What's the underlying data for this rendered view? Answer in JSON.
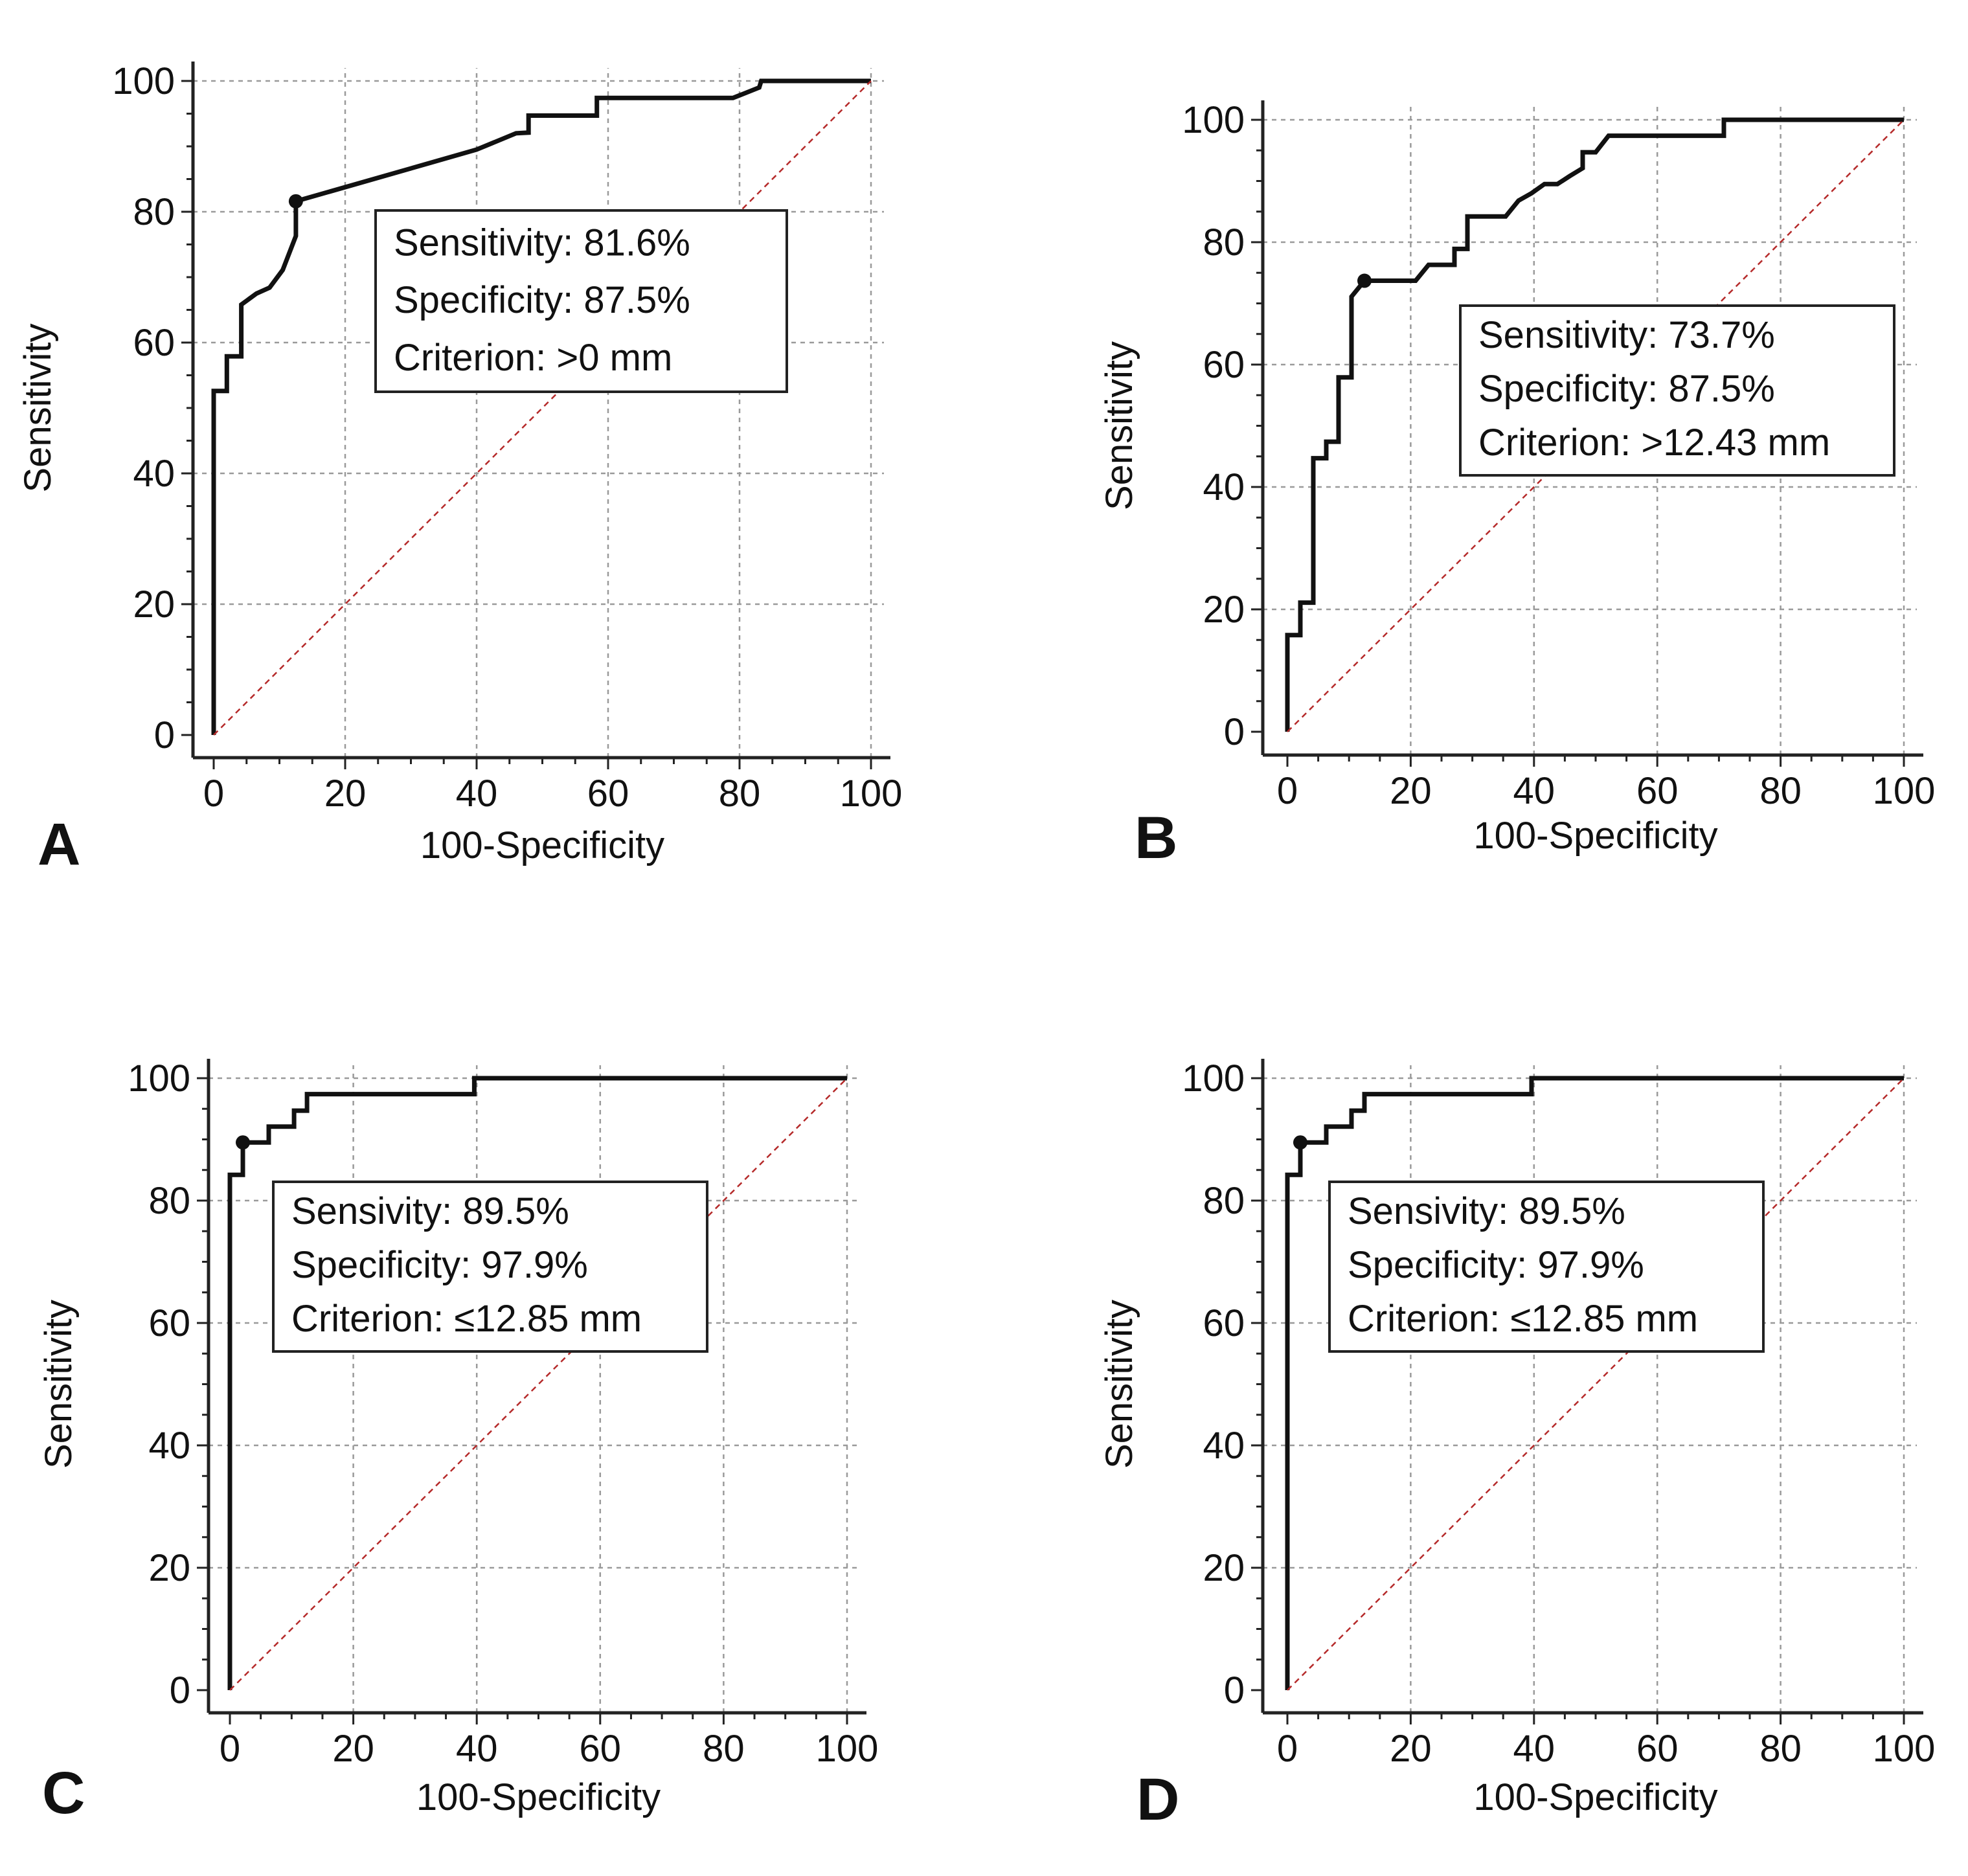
{
  "panels": [
    {
      "label": "A",
      "chart_data": {
        "type": "line",
        "title": "",
        "xlabel": "100-Specificity",
        "ylabel": "Sensitivity",
        "xlim": [
          0,
          100
        ],
        "ylim": [
          0,
          100
        ],
        "xticks": [
          0,
          20,
          40,
          60,
          80,
          100
        ],
        "yticks": [
          0,
          20,
          40,
          60,
          80,
          100
        ],
        "xtick_labels": [
          "0",
          "20",
          "40",
          "60",
          "80",
          "100"
        ],
        "ytick_labels": [
          "0",
          "20",
          "40",
          "60",
          "80",
          "100"
        ],
        "grid": true,
        "series": [
          {
            "name": "ROC curve",
            "x": [
              0,
              0,
              2,
              2,
              4.2,
              4.2,
              6.5,
              8.5,
              10.5,
              12.5,
              12.5,
              40,
              46,
              47.9,
              47.9,
              58.3,
              58.3,
              79,
              83,
              83.3,
              100
            ],
            "y": [
              0,
              52.6,
              52.6,
              57.9,
              57.9,
              65.8,
              67.5,
              68.4,
              71.1,
              76.3,
              81.6,
              89.5,
              92,
              92.1,
              94.7,
              94.7,
              97.4,
              97.4,
              99,
              100,
              100
            ]
          },
          {
            "name": "Reference line",
            "x": [
              0,
              100
            ],
            "y": [
              0,
              100
            ]
          }
        ],
        "cutoff_point": {
          "x": 12.5,
          "y": 81.6
        },
        "annotation": [
          "Sensitivity: 81.6%",
          "Specificity: 87.5%",
          "Criterion: >0 mm"
        ]
      }
    },
    {
      "label": "B",
      "chart_data": {
        "type": "line",
        "title": "",
        "xlabel": "100-Specificity",
        "ylabel": "Sensitivity",
        "xlim": [
          0,
          100
        ],
        "ylim": [
          0,
          100
        ],
        "xticks": [
          0,
          20,
          40,
          60,
          80,
          100
        ],
        "yticks": [
          0,
          20,
          40,
          60,
          80,
          100
        ],
        "xtick_labels": [
          "0",
          "20",
          "40",
          "60",
          "80",
          "100"
        ],
        "ytick_labels": [
          "0",
          "20",
          "40",
          "60",
          "80",
          "100"
        ],
        "grid": true,
        "series": [
          {
            "name": "ROC curve",
            "x": [
              0,
              0,
              2.1,
              2.1,
              4.2,
              4.2,
              6.3,
              6.3,
              8.3,
              8.3,
              10.4,
              10.4,
              12.5,
              20.8,
              22.9,
              22.9,
              27.1,
              27.1,
              29.2,
              29.2,
              35.4,
              37.5,
              39.6,
              41.7,
              43.8,
              45.8,
              47.9,
              47.9,
              50,
              52.1,
              52.1,
              70.8,
              70.8,
              100
            ],
            "y": [
              0,
              15.8,
              15.8,
              21.1,
              21.1,
              44.7,
              44.7,
              47.4,
              47.4,
              57.9,
              57.9,
              71.1,
              73.7,
              73.7,
              76.3,
              76.3,
              76.3,
              78.9,
              78.9,
              84.2,
              84.2,
              86.8,
              88,
              89.5,
              89.5,
              90.8,
              92.1,
              94.7,
              94.7,
              97.4,
              97.4,
              97.4,
              100,
              100
            ]
          },
          {
            "name": "Reference line",
            "x": [
              0,
              100
            ],
            "y": [
              0,
              100
            ]
          }
        ],
        "cutoff_point": {
          "x": 12.5,
          "y": 73.7
        },
        "annotation": [
          "Sensitivity: 73.7%",
          "Specificity: 87.5%",
          "Criterion: >12.43 mm"
        ]
      }
    },
    {
      "label": "C",
      "chart_data": {
        "type": "line",
        "title": "",
        "xlabel": "100-Specificity",
        "ylabel": "Sensitivity",
        "xlim": [
          0,
          100
        ],
        "ylim": [
          0,
          100
        ],
        "xticks": [
          0,
          20,
          40,
          60,
          80,
          100
        ],
        "yticks": [
          0,
          20,
          40,
          60,
          80,
          100
        ],
        "xtick_labels": [
          "0",
          "20",
          "40",
          "60",
          "80",
          "100"
        ],
        "ytick_labels": [
          "0",
          "20",
          "40",
          "60",
          "80",
          "100"
        ],
        "grid": true,
        "series": [
          {
            "name": "ROC curve",
            "x": [
              0,
              0,
              2.1,
              2.1,
              6.3,
              6.3,
              10.4,
              10.4,
              12.5,
              12.5,
              39.6,
              39.6,
              100
            ],
            "y": [
              0,
              84.2,
              84.2,
              89.5,
              89.5,
              92.1,
              92.1,
              94.7,
              94.7,
              97.4,
              97.4,
              100,
              100
            ]
          },
          {
            "name": "Reference line",
            "x": [
              0,
              100
            ],
            "y": [
              0,
              100
            ]
          }
        ],
        "cutoff_point": {
          "x": 2.1,
          "y": 89.5
        },
        "annotation": [
          "Sensivity: 89.5%",
          "Specificity: 97.9%",
          "Criterion: ≤12.85 mm"
        ]
      }
    },
    {
      "label": "D",
      "chart_data": {
        "type": "line",
        "title": "",
        "xlabel": "100-Specificity",
        "ylabel": "Sensitivity",
        "xlim": [
          0,
          100
        ],
        "ylim": [
          0,
          100
        ],
        "xticks": [
          0,
          20,
          40,
          60,
          80,
          100
        ],
        "yticks": [
          0,
          20,
          40,
          60,
          80,
          100
        ],
        "xtick_labels": [
          "0",
          "20",
          "40",
          "60",
          "80",
          "100"
        ],
        "ytick_labels": [
          "0",
          "20",
          "40",
          "60",
          "80",
          "100"
        ],
        "grid": true,
        "series": [
          {
            "name": "ROC curve",
            "x": [
              0,
              0,
              2.1,
              2.1,
              6.3,
              6.3,
              10.4,
              10.4,
              12.5,
              12.5,
              39.6,
              39.6,
              100
            ],
            "y": [
              0,
              84.2,
              84.2,
              89.5,
              89.5,
              92.1,
              92.1,
              94.7,
              94.7,
              97.4,
              97.4,
              100,
              100
            ]
          },
          {
            "name": "Reference line",
            "x": [
              0,
              100
            ],
            "y": [
              0,
              100
            ]
          }
        ],
        "cutoff_point": {
          "x": 2.1,
          "y": 89.5
        },
        "annotation": [
          "Sensivity: 89.5%",
          "Specificity: 97.9%",
          "Criterion: ≤12.85 mm"
        ]
      }
    }
  ]
}
